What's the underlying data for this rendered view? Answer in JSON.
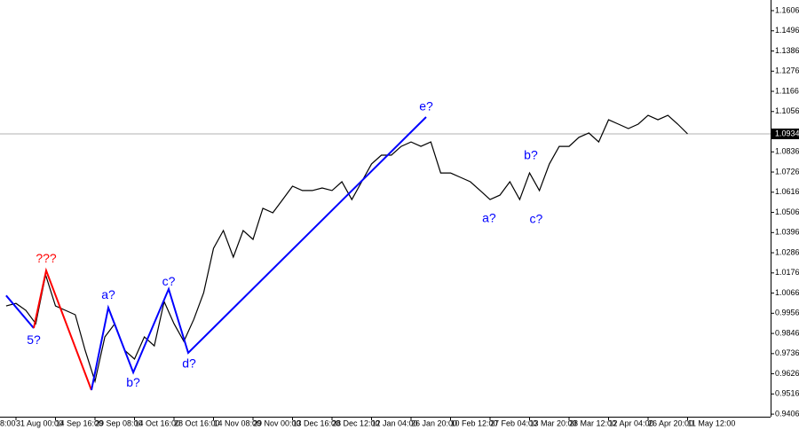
{
  "chart_data": {
    "type": "line",
    "categories": [
      null,
      "31 Aug 00:00",
      null,
      null,
      null,
      "14 Sep 16:00",
      null,
      null,
      null,
      "29 Sep 08:00",
      null,
      null,
      null,
      "14 Oct 16:00",
      null,
      null,
      null,
      "28 Oct 16:00",
      null,
      null,
      null,
      "14 Nov 08:00",
      null,
      null,
      null,
      "29 Nov 00:00",
      null,
      null,
      null,
      "13 Dec 16:00",
      null,
      null,
      null,
      "28 Dec 12:00",
      null,
      null,
      null,
      "12 Jan 04:00",
      null,
      null,
      null,
      "26 Jan 20:00",
      null,
      null,
      null,
      "10 Feb 12:00",
      null,
      null,
      null,
      "27 Feb 04:00",
      null,
      null,
      null,
      "13 Mar 20:00",
      null,
      null,
      null,
      "28 Mar 12:00",
      null,
      null,
      null,
      "12 Apr 04:00",
      null,
      null,
      null,
      "26 Apr 20:00",
      null,
      null,
      null,
      "11 May 12:00"
    ],
    "x_label_cut": "8:00",
    "series": [
      {
        "color": "#000000",
        "values": [
          0.9996,
          1.001,
          0.9972,
          0.9899,
          1.0165,
          0.9996,
          0.9972,
          0.9948,
          0.9754,
          0.9585,
          0.9827,
          0.9899,
          0.9754,
          0.9706,
          0.9827,
          0.9778,
          1.002,
          0.9899,
          0.9803,
          0.9923,
          1.0068,
          1.031,
          1.0407,
          1.0262,
          1.0407,
          1.0359,
          1.0528,
          1.0504,
          1.0576,
          1.0649,
          1.0625,
          1.0625,
          1.0639,
          1.0625,
          1.0673,
          1.0576,
          1.0673,
          1.077,
          1.0818,
          1.0818,
          1.0866,
          1.089,
          1.0866,
          1.089,
          1.0721,
          1.0721,
          1.0697,
          1.0673,
          1.0625,
          1.0576,
          1.06,
          1.0673,
          1.0576,
          1.0721,
          1.0625,
          1.077,
          1.0866,
          1.0866,
          1.0915,
          1.0939,
          1.089,
          1.1011,
          1.0987,
          1.0963,
          1.0987,
          1.1035,
          1.1011,
          1.1035,
          1.0987,
          1.0934
        ]
      }
    ],
    "current_price": 1.0934,
    "ylim": [
      0.9392,
      1.1664
    ],
    "yticks": [
      1.1606,
      1.1496,
      1.1386,
      1.1276,
      1.1166,
      1.1056,
      1.0836,
      1.0726,
      1.0616,
      1.0506,
      1.0396,
      1.0286,
      1.0176,
      1.0066,
      0.9956,
      0.9846,
      0.9736,
      0.9626,
      0.9516,
      0.9406
    ],
    "waves": [
      {
        "color": "#0000ff",
        "x": [
          0,
          2.8
        ],
        "values": [
          1.0053,
          0.9875
        ]
      },
      {
        "color": "#ff0000",
        "x": [
          2.8,
          4.06,
          8.64
        ],
        "values": [
          0.9875,
          1.0189,
          0.9537
        ]
      },
      {
        "color": "#0000ff",
        "x": [
          8.64,
          10.35,
          12.87,
          16.46,
          18.44,
          42.53
        ],
        "values": [
          0.9537,
          0.9986,
          0.9633,
          1.0088,
          0.974,
          1.1026
        ]
      }
    ],
    "wave_labels": [
      {
        "text": "5?",
        "color": "#0000ff",
        "x": 2.8,
        "y": 0.9807
      },
      {
        "text": "???",
        "color": "#ff0000",
        "x": 4.06,
        "y": 1.0252
      },
      {
        "text": "a?",
        "color": "#0000ff",
        "x": 10.35,
        "y": 1.0054
      },
      {
        "text": "b?",
        "color": "#0000ff",
        "x": 12.87,
        "y": 0.9575
      },
      {
        "text": "c?",
        "color": "#0000ff",
        "x": 16.46,
        "y": 1.0126
      },
      {
        "text": "d?",
        "color": "#0000ff",
        "x": 18.53,
        "y": 0.9677
      },
      {
        "text": "e?",
        "color": "#0000ff",
        "x": 42.53,
        "y": 1.1079
      },
      {
        "text": "a?",
        "color": "#0000ff",
        "x": 48.9,
        "y": 1.047
      },
      {
        "text": "b?",
        "color": "#0000ff",
        "x": 53.13,
        "y": 1.0813
      },
      {
        "text": "c?",
        "color": "#0000ff",
        "x": 53.67,
        "y": 1.0465
      }
    ]
  }
}
